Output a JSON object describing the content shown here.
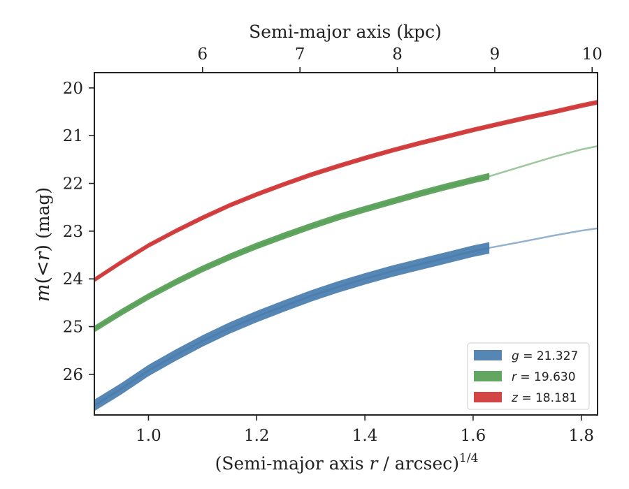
{
  "chart_data": {
    "type": "line",
    "xlabel": "(Semi-major axis r / arcsec)^1/4",
    "ylabel": "m(<r) (mag)",
    "top_xlabel": "Semi-major axis (kpc)",
    "xlim": [
      0.9,
      1.83
    ],
    "ylim": [
      26.85,
      19.68
    ],
    "x_ticks": [
      1.0,
      1.2,
      1.4,
      1.6,
      1.8
    ],
    "x_tick_labels": [
      "1.0",
      "1.2",
      "1.4",
      "1.6",
      "1.8"
    ],
    "y_ticks": [
      20,
      21,
      22,
      23,
      24,
      25,
      26
    ],
    "y_tick_labels": [
      "20",
      "21",
      "22",
      "23",
      "24",
      "25",
      "26"
    ],
    "top_ticks": [
      6,
      7,
      8,
      9,
      10
    ],
    "top_tick_labels": [
      "6",
      "7",
      "8",
      "9",
      "10"
    ],
    "top_tick_positions_x": [
      1.1,
      1.28,
      1.46,
      1.64,
      1.82
    ],
    "grid": false,
    "legend_position": "bottom-right",
    "series": [
      {
        "name": "g",
        "legend_value": "21.327",
        "color": "#4c7fb0",
        "band_width_mag": 0.24,
        "x": [
          0.9,
          0.95,
          1.0,
          1.05,
          1.1,
          1.15,
          1.2,
          1.25,
          1.3,
          1.35,
          1.4,
          1.45,
          1.5,
          1.55,
          1.6,
          1.63
        ],
        "y": [
          26.65,
          26.3,
          25.92,
          25.6,
          25.3,
          25.03,
          24.79,
          24.57,
          24.36,
          24.17,
          24.0,
          23.84,
          23.7,
          23.56,
          23.42,
          23.35
        ],
        "ext_x": [
          1.63,
          1.7,
          1.75,
          1.8,
          1.83
        ],
        "ext_y": [
          23.35,
          23.2,
          23.09,
          22.99,
          22.94
        ]
      },
      {
        "name": "r",
        "legend_value": "19.630",
        "color": "#5aa15a",
        "band_width_mag": 0.14,
        "x": [
          0.9,
          0.95,
          1.0,
          1.05,
          1.1,
          1.15,
          1.2,
          1.25,
          1.3,
          1.35,
          1.4,
          1.45,
          1.5,
          1.55,
          1.6,
          1.63
        ],
        "y": [
          25.05,
          24.7,
          24.37,
          24.07,
          23.79,
          23.54,
          23.31,
          23.1,
          22.9,
          22.71,
          22.54,
          22.38,
          22.22,
          22.07,
          21.93,
          21.85
        ],
        "ext_x": [
          1.63,
          1.7,
          1.75,
          1.8,
          1.83
        ],
        "ext_y": [
          21.85,
          21.61,
          21.44,
          21.29,
          21.22
        ]
      },
      {
        "name": "z",
        "legend_value": "18.181",
        "color": "#d13b3b",
        "band_width_mag": 0.1,
        "x": [
          0.9,
          0.95,
          1.0,
          1.05,
          1.1,
          1.15,
          1.2,
          1.25,
          1.3,
          1.35,
          1.4,
          1.45,
          1.5,
          1.55,
          1.6,
          1.65,
          1.7,
          1.75,
          1.8,
          1.83
        ],
        "y": [
          24.02,
          23.65,
          23.3,
          23.0,
          22.72,
          22.46,
          22.23,
          22.02,
          21.82,
          21.64,
          21.47,
          21.31,
          21.16,
          21.02,
          20.88,
          20.75,
          20.62,
          20.5,
          20.37,
          20.3
        ]
      }
    ]
  }
}
